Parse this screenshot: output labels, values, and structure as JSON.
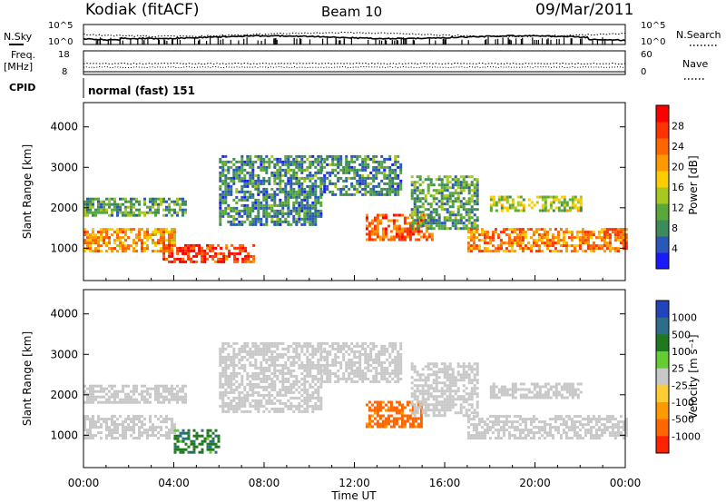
{
  "header": {
    "station": "Kodiak (fitACF)",
    "beam": "Beam 10",
    "date": "09/Mar/2011"
  },
  "params": {
    "nsky_label": "N.Sky",
    "nsky_ticks": [
      "10^5",
      "10^0"
    ],
    "nsearch_label": "N.Search",
    "nsearch_ticks": [
      "10^5",
      "10^0"
    ],
    "freq_label": "Freq.",
    "freq_unit": "[MHz]",
    "freq_ticks": [
      "18",
      "8"
    ],
    "nave_label": "Nave",
    "nave_ticks": [
      "60",
      "0"
    ],
    "cpid_label": "CPID",
    "cpid_value": "normal (fast) 151"
  },
  "chart_data": [
    {
      "type": "heatmap",
      "name": "power",
      "ylabel": "Slant Range [km]",
      "yticks": [
        "1000",
        "2000",
        "3000",
        "4000"
      ],
      "ylim": [
        200,
        4600
      ],
      "xlim": [
        0,
        24
      ],
      "colorbar": {
        "title": "Power [dB]",
        "labels": [
          "4",
          "8",
          "12",
          "16",
          "20",
          "24",
          "28"
        ],
        "colors": [
          "#1a1aff",
          "#2b57b8",
          "#3d8a5a",
          "#5aa83a",
          "#a8c820",
          "#ffcc00",
          "#ff9900",
          "#ff6600",
          "#ff3300",
          "#ff0000"
        ]
      },
      "echo_regions": [
        {
          "t": [
            0.0,
            4.0
          ],
          "range": [
            950,
            1500
          ],
          "dB": 20
        },
        {
          "t": [
            3.5,
            7.5
          ],
          "range": [
            650,
            1100
          ],
          "dB": 26
        },
        {
          "t": [
            0.0,
            4.5
          ],
          "range": [
            1800,
            2250
          ],
          "dB": 10
        },
        {
          "t": [
            6.0,
            10.5
          ],
          "range": [
            1600,
            3300
          ],
          "dB": 8
        },
        {
          "t": [
            10.5,
            14.0
          ],
          "range": [
            2300,
            3300
          ],
          "dB": 8
        },
        {
          "t": [
            12.5,
            15.5
          ],
          "range": [
            1200,
            1850
          ],
          "dB": 24
        },
        {
          "t": [
            14.5,
            17.5
          ],
          "range": [
            1500,
            2800
          ],
          "dB": 10
        },
        {
          "t": [
            17.0,
            24.0
          ],
          "range": [
            900,
            1500
          ],
          "dB": 22
        },
        {
          "t": [
            18.0,
            22.0
          ],
          "range": [
            1900,
            2300
          ],
          "dB": 14
        }
      ]
    },
    {
      "type": "heatmap",
      "name": "velocity",
      "ylabel": "Slant Range [km]",
      "xlabel": "Time UT",
      "xticks": [
        "00:00",
        "04:00",
        "08:00",
        "12:00",
        "16:00",
        "20:00",
        "00:00"
      ],
      "yticks": [
        "1000",
        "2000",
        "3000",
        "4000"
      ],
      "ylim": [
        200,
        4600
      ],
      "xlim": [
        0,
        24
      ],
      "colorbar": {
        "title": "Velocity [m s⁻¹]",
        "labels": [
          "1000",
          "500",
          "100",
          "25",
          "-25",
          "-100",
          "-500",
          "-1000"
        ],
        "colors": [
          "#2244bb",
          "#2c6e8a",
          "#1f7a1f",
          "#66cc33",
          "#c8c8c8",
          "#ffcc33",
          "#ff9900",
          "#ff6600",
          "#ff2200"
        ]
      },
      "echo_regions": [
        {
          "t": [
            0.0,
            4.0
          ],
          "range": [
            950,
            1500
          ],
          "v": 0
        },
        {
          "t": [
            4.0,
            6.0
          ],
          "range": [
            550,
            1150
          ],
          "v": 200
        },
        {
          "t": [
            0.0,
            4.5
          ],
          "range": [
            1800,
            2250
          ],
          "v": 0
        },
        {
          "t": [
            6.0,
            10.5
          ],
          "range": [
            1600,
            3300
          ],
          "v": 0
        },
        {
          "t": [
            10.5,
            14.0
          ],
          "range": [
            2300,
            3300
          ],
          "v": 0
        },
        {
          "t": [
            12.5,
            15.0
          ],
          "range": [
            1200,
            1850
          ],
          "v": -400
        },
        {
          "t": [
            14.5,
            17.5
          ],
          "range": [
            1500,
            2800
          ],
          "v": 0
        },
        {
          "t": [
            17.0,
            24.0
          ],
          "range": [
            900,
            1500
          ],
          "v": 0
        },
        {
          "t": [
            18.0,
            22.0
          ],
          "range": [
            1900,
            2300
          ],
          "v": 0
        }
      ]
    }
  ]
}
